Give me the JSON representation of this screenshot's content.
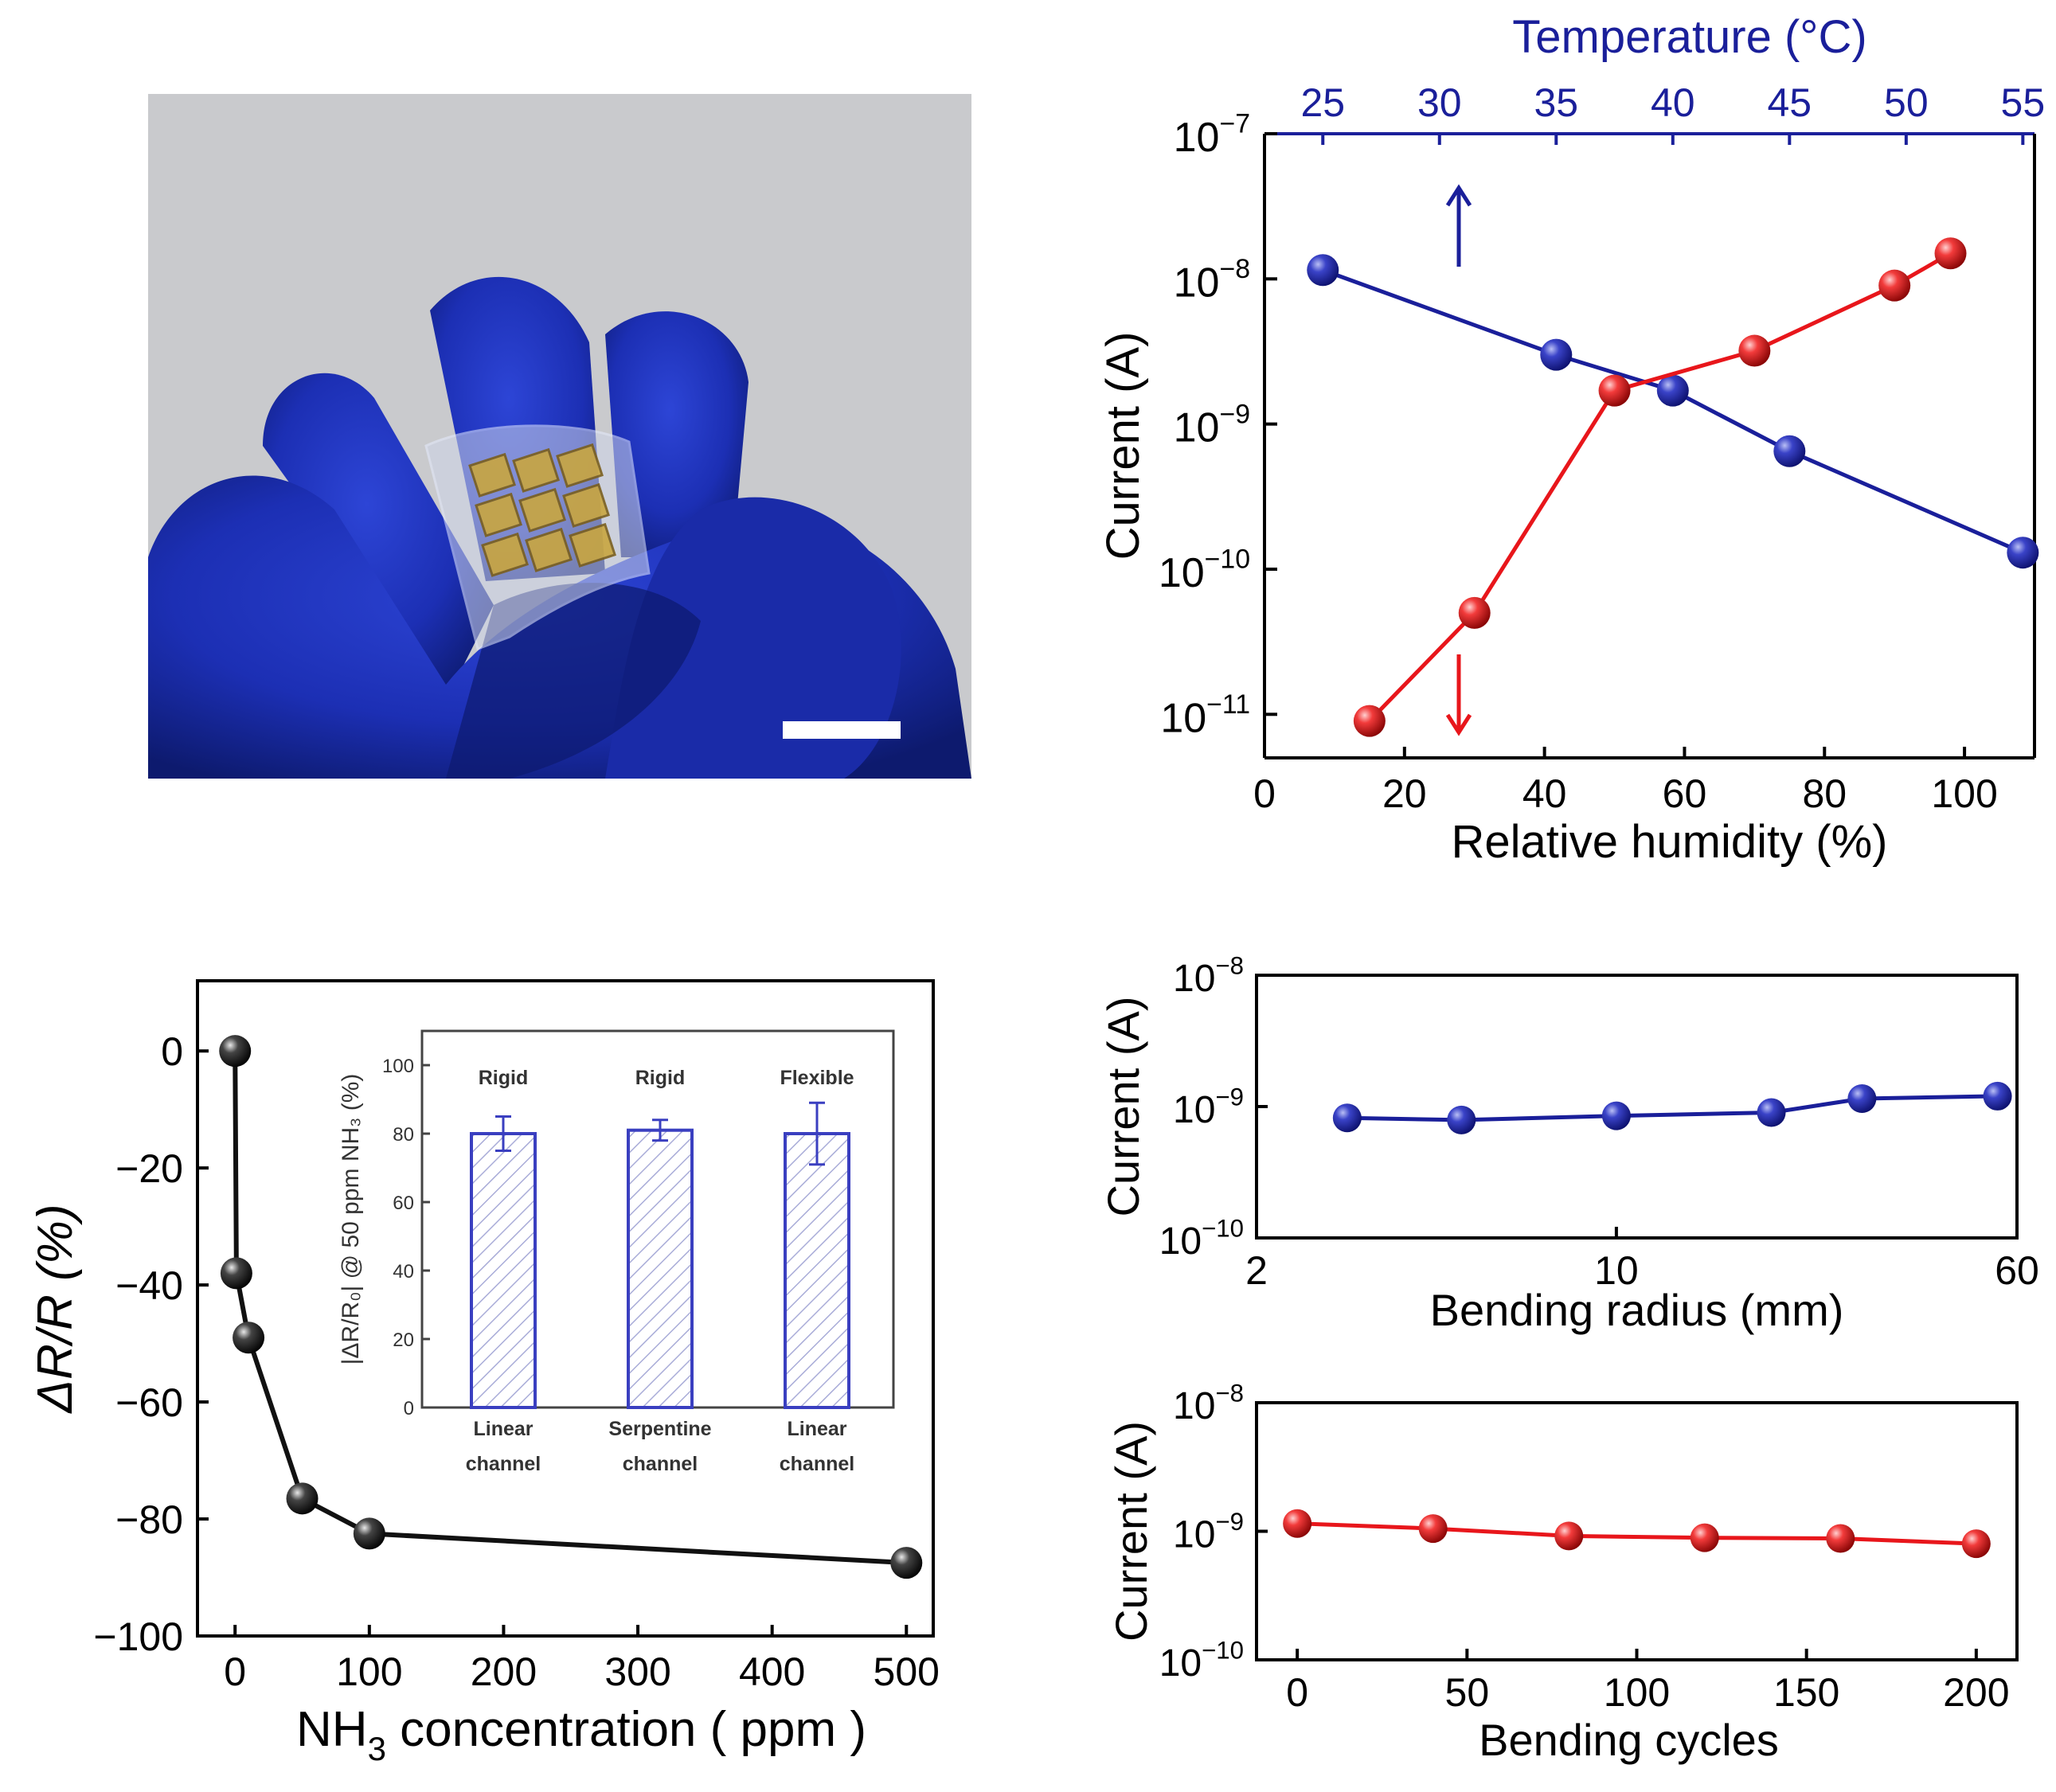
{
  "photo": {
    "label": "",
    "colors": {
      "background": "#c9cacd",
      "glove": "#1c2fb4",
      "glove_shadow": "#0d1a6e",
      "sensor_gold": "#c9a640",
      "scale_bar": "#ffffff"
    }
  },
  "chart_data": [
    {
      "id": "humidity-temperature",
      "type": "line",
      "title": "",
      "xlabel": "Relative  humidity (%)",
      "x2label": "Temperature (°C)",
      "ylabel": "Current (A)",
      "xlim": [
        0,
        110
      ],
      "x2lim": [
        22.5,
        55.5
      ],
      "ylim_log10": [
        -11.3,
        -7
      ],
      "yscale": "log",
      "x_ticks": [
        "0",
        "20",
        "40",
        "60",
        "80",
        "100"
      ],
      "x2_ticks": [
        "25",
        "30",
        "35",
        "40",
        "45",
        "50",
        "55"
      ],
      "y_ticks": [
        {
          "base": "10",
          "exp": "−11"
        },
        {
          "base": "10",
          "exp": "−10"
        },
        {
          "base": "10",
          "exp": "−9"
        },
        {
          "base": "10",
          "exp": "−8"
        },
        {
          "base": "10",
          "exp": "−7"
        }
      ],
      "series": [
        {
          "axis": "top",
          "color": "#1a1f9a",
          "x": [
            25,
            35,
            40,
            45,
            55
          ],
          "y": [
            1.15e-08,
            3e-09,
            1.7e-09,
            6.5e-10,
            1.3e-10
          ]
        },
        {
          "axis": "bottom",
          "color": "#e8161b",
          "x": [
            15,
            30,
            50,
            70,
            90,
            98
          ],
          "y": [
            9e-12,
            5e-11,
            1.7e-09,
            3.2e-09,
            9e-09,
            1.5e-08
          ]
        }
      ],
      "arrows": [
        {
          "direction": "up",
          "color": "#1a1f9a"
        },
        {
          "direction": "down",
          "color": "#e8161b"
        }
      ]
    },
    {
      "id": "nh3-response",
      "type": "line",
      "title": "",
      "xlabel_parts": [
        "NH",
        "3",
        " concentration ( ppm )"
      ],
      "ylabel": "ΔR/R (%)",
      "xlim": [
        -28,
        520
      ],
      "ylim": [
        -100,
        12
      ],
      "x_ticks": [
        "0",
        "100",
        "200",
        "300",
        "400",
        "500"
      ],
      "y_ticks": [
        "0",
        "−20",
        "−40",
        "−60",
        "−80",
        "−100"
      ],
      "series": [
        {
          "color": "#111111",
          "x": [
            0,
            1,
            10,
            50,
            100,
            500
          ],
          "y": [
            0,
            -38,
            -49,
            -76.5,
            -82.5,
            -87.5
          ]
        }
      ],
      "inset": {
        "type": "bar",
        "ylabel": "|ΔR/R₀| @ 50 ppm NH₃ (%)",
        "ylim": [
          0,
          110
        ],
        "y_ticks": [
          "0",
          "20",
          "40",
          "60",
          "80",
          "100"
        ],
        "bar_color": "#3a3fc0",
        "bars": [
          {
            "label_top": "Rigid",
            "label_line1": "Linear",
            "label_line2": "channel",
            "value": 80,
            "err": 5
          },
          {
            "label_top": "Rigid",
            "label_line1": "Serpentine",
            "label_line2": "channel",
            "value": 81,
            "err": 3
          },
          {
            "label_top": "Flexible",
            "label_line1": "Linear",
            "label_line2": "channel",
            "value": 80,
            "err": 9
          }
        ]
      }
    },
    {
      "id": "bending-radius",
      "type": "line",
      "title": "",
      "xlabel": "Bending radius (mm)",
      "ylabel": "Current (A)",
      "xscale": "log",
      "xlim": [
        2,
        60
      ],
      "ylim_log10": [
        -10,
        -8
      ],
      "yscale": "log",
      "x_ticks": [
        "2",
        "10",
        "60"
      ],
      "y_ticks": [
        {
          "base": "10",
          "exp": "−10"
        },
        {
          "base": "10",
          "exp": "−9"
        },
        {
          "base": "10",
          "exp": "−8"
        }
      ],
      "series": [
        {
          "color": "#1a1f9a",
          "x": [
            3,
            5,
            10,
            20,
            30,
            55
          ],
          "y": [
            8.2e-10,
            7.9e-10,
            8.5e-10,
            9e-10,
            1.15e-09,
            1.2e-09
          ]
        }
      ]
    },
    {
      "id": "bending-cycles",
      "type": "line",
      "title": "",
      "xlabel": "Bending cycles",
      "ylabel": "Current (A)",
      "xlim": [
        -12,
        212
      ],
      "ylim_log10": [
        -10,
        -8
      ],
      "yscale": "log",
      "x_ticks": [
        "0",
        "50",
        "100",
        "150",
        "200"
      ],
      "y_ticks": [
        {
          "base": "10",
          "exp": "−10"
        },
        {
          "base": "10",
          "exp": "−9"
        },
        {
          "base": "10",
          "exp": "−8"
        }
      ],
      "series": [
        {
          "color": "#e8161b",
          "x": [
            0,
            40,
            80,
            120,
            160,
            200
          ],
          "y": [
            1.15e-09,
            1.05e-09,
            9.2e-10,
            8.9e-10,
            8.8e-10,
            8e-10
          ]
        }
      ]
    }
  ]
}
